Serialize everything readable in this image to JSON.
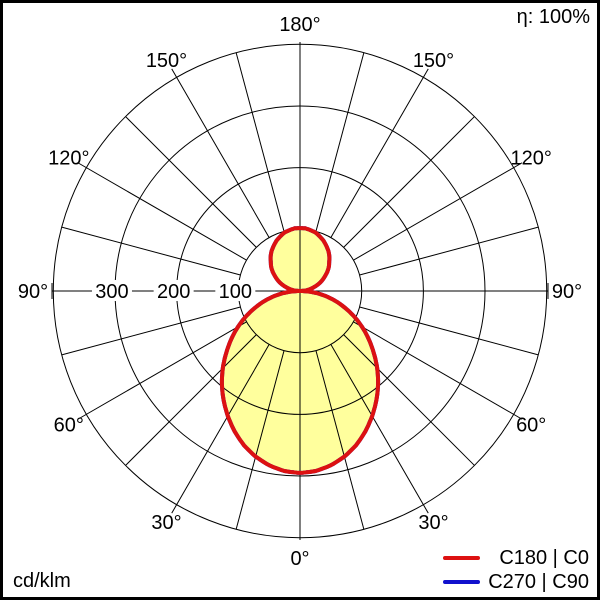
{
  "header": {
    "efficiency": "η: 100%"
  },
  "footer": {
    "units": "cd/klm"
  },
  "legend": {
    "items": [
      {
        "label": "C180 | C0",
        "color": "#dd1111"
      },
      {
        "label": "C270 | C90",
        "color": "#1111cd"
      }
    ]
  },
  "chart_data": {
    "type": "polar",
    "subtype": "luminous-intensity-distribution",
    "title": "",
    "units": "cd/klm",
    "efficiency": "η: 100%",
    "grid": true,
    "legend_position": "bottom-right",
    "spoke_step_deg": 15,
    "angle_label_step_deg": 30,
    "angle_labels": [
      "0°",
      "30°",
      "60°",
      "90°",
      "120°",
      "150°",
      "180°"
    ],
    "rings": [
      {
        "value": 100,
        "label": "100"
      },
      {
        "value": 200,
        "label": "200"
      },
      {
        "value": 300,
        "label": "300"
      },
      {
        "value": 400,
        "label": ""
      }
    ],
    "ring_max": 400,
    "gamma_deg": [
      0,
      5,
      10,
      15,
      20,
      25,
      30,
      35,
      40,
      45,
      50,
      55,
      60,
      65,
      70,
      75,
      80,
      85,
      90,
      95,
      100,
      105,
      110,
      115,
      120,
      125,
      130,
      135,
      140,
      145,
      150,
      155,
      160,
      165,
      170,
      175,
      180
    ],
    "series": [
      {
        "name": "C180 | C0",
        "color": "#dd1111",
        "fill": "#ffff9d",
        "symmetric_c_plane": true,
        "values": [
          295,
          293,
          287,
          278,
          266,
          251,
          234,
          216,
          197,
          177,
          156,
          136,
          116,
          96,
          76,
          57,
          38,
          19,
          0,
          8,
          16,
          23,
          31,
          39,
          46,
          54,
          61,
          67,
          74,
          80,
          85,
          90,
          94,
          98,
          100,
          102,
          102
        ]
      },
      {
        "name": "C270 | C90",
        "color": "#1111cd",
        "fill": null,
        "symmetric_c_plane": true,
        "hidden_behind": "C180 | C0",
        "values": [
          295,
          293,
          287,
          278,
          266,
          251,
          234,
          216,
          197,
          177,
          156,
          136,
          116,
          96,
          76,
          57,
          38,
          19,
          0,
          8,
          16,
          23,
          31,
          39,
          46,
          54,
          61,
          67,
          74,
          80,
          85,
          90,
          94,
          98,
          100,
          102,
          102
        ]
      }
    ]
  }
}
